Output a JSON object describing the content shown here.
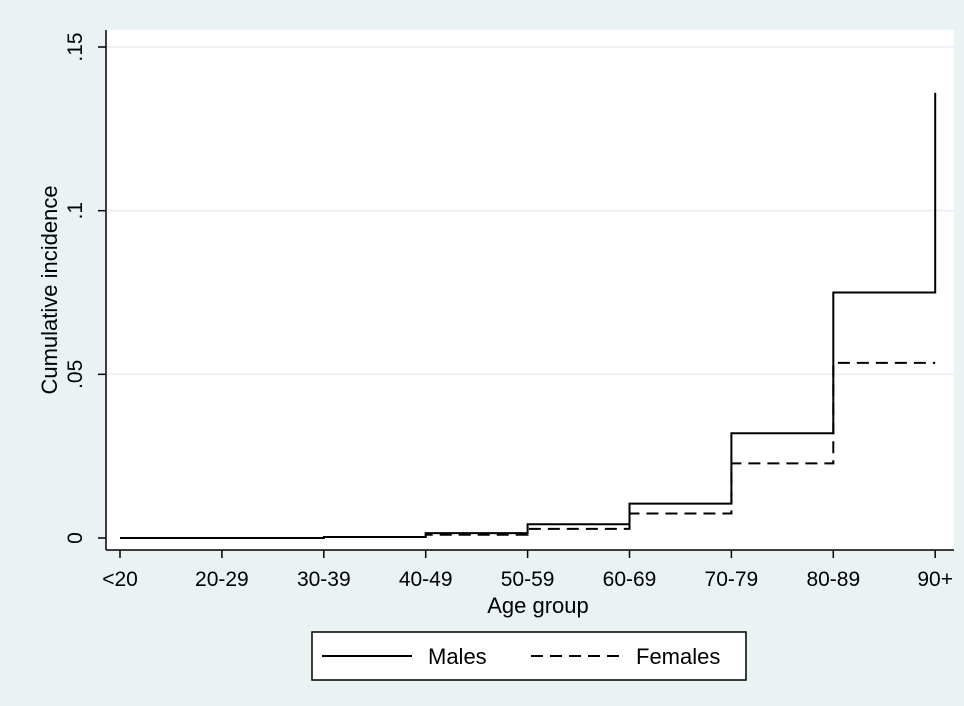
{
  "chart_data": {
    "type": "line",
    "step": true,
    "categories": [
      "<20",
      "20-29",
      "30-39",
      "40-49",
      "50-59",
      "60-69",
      "70-79",
      "80-89",
      "90+"
    ],
    "series": [
      {
        "name": "Males",
        "line_style": "solid",
        "color": "#000000",
        "values": [
          0.0,
          0.0,
          0.0003,
          0.0015,
          0.0042,
          0.0105,
          0.032,
          0.075,
          0.136
        ]
      },
      {
        "name": "Females",
        "line_style": "dashed",
        "color": "#000000",
        "values": [
          0.0,
          0.0,
          0.0003,
          0.001,
          0.0028,
          0.0075,
          0.0228,
          0.0535,
          0.0535
        ]
      }
    ],
    "xlabel": "Age group",
    "ylabel": "Cumulative incidence",
    "ylim": [
      0,
      0.15
    ],
    "yticks": [
      0,
      0.05,
      0.1,
      0.15
    ],
    "ytick_labels": [
      "0",
      ".05",
      ".1",
      ".15"
    ],
    "grid": true,
    "legend_position": "bottom",
    "colors": {
      "background": "#eaf2f3",
      "plot_area": "#ffffff",
      "gridline": "#e8eef0",
      "line": "#000000"
    }
  }
}
